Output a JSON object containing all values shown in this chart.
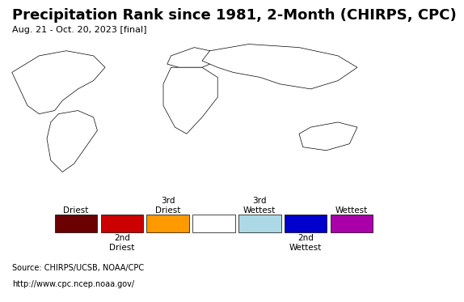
{
  "title": "Precipitation Rank since 1981, 2-Month (CHIRPS, CPC)",
  "subtitle": "Aug. 21 - Oct. 20, 2023 [final]",
  "source_line1": "Source: CHIRPS/UCSB, NOAA/CPC",
  "source_line2": "http://www.cpc.ncep.noaa.gov/",
  "legend_colors": [
    "#6b0000",
    "#cc0000",
    "#ff9900",
    "#ffffff",
    "#add8e6",
    "#0000cc",
    "#aa00aa"
  ],
  "legend_labels_top": [
    "Driest",
    "",
    "3rd\nDriest",
    "",
    "3rd\nWettest",
    "",
    "Wettest"
  ],
  "legend_labels_bottom": [
    "",
    "2nd\nDriest",
    "",
    "",
    "",
    "2nd\nWettest",
    ""
  ],
  "map_bg_color": "#aadcee",
  "figure_bg": "#ffffff",
  "legend_bg": "#ffffff",
  "source_bg": "#ebebeb",
  "title_fontsize": 13,
  "subtitle_fontsize": 8,
  "source_fontsize": 7,
  "legend_fontsize": 7.5
}
